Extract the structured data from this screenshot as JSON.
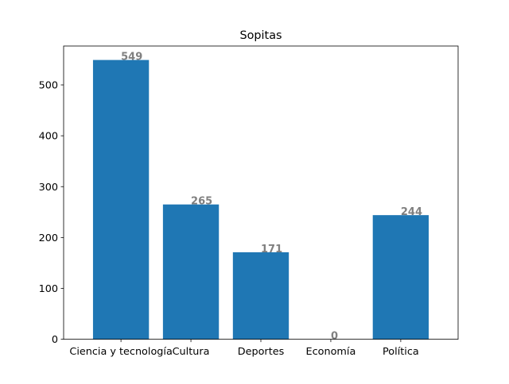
{
  "chart_data": {
    "type": "bar",
    "title": "Sopitas",
    "xlabel": "",
    "ylabel": "",
    "categories": [
      "Ciencia y tecnología",
      "Cultura",
      "Deportes",
      "Economía",
      "Política"
    ],
    "values": [
      549,
      265,
      171,
      0,
      244
    ],
    "value_labels": [
      "549",
      "265",
      "171",
      "0",
      "244"
    ],
    "ylim": [
      0,
      576.45
    ],
    "yticks": [
      0,
      100,
      200,
      300,
      400,
      500
    ],
    "ytick_labels": [
      "0",
      "100",
      "200",
      "300",
      "400",
      "500"
    ],
    "grid": false,
    "legend": "none",
    "colors": {
      "bar": "#1f77b4",
      "value_label": "#808080",
      "axis": "#000000"
    }
  }
}
